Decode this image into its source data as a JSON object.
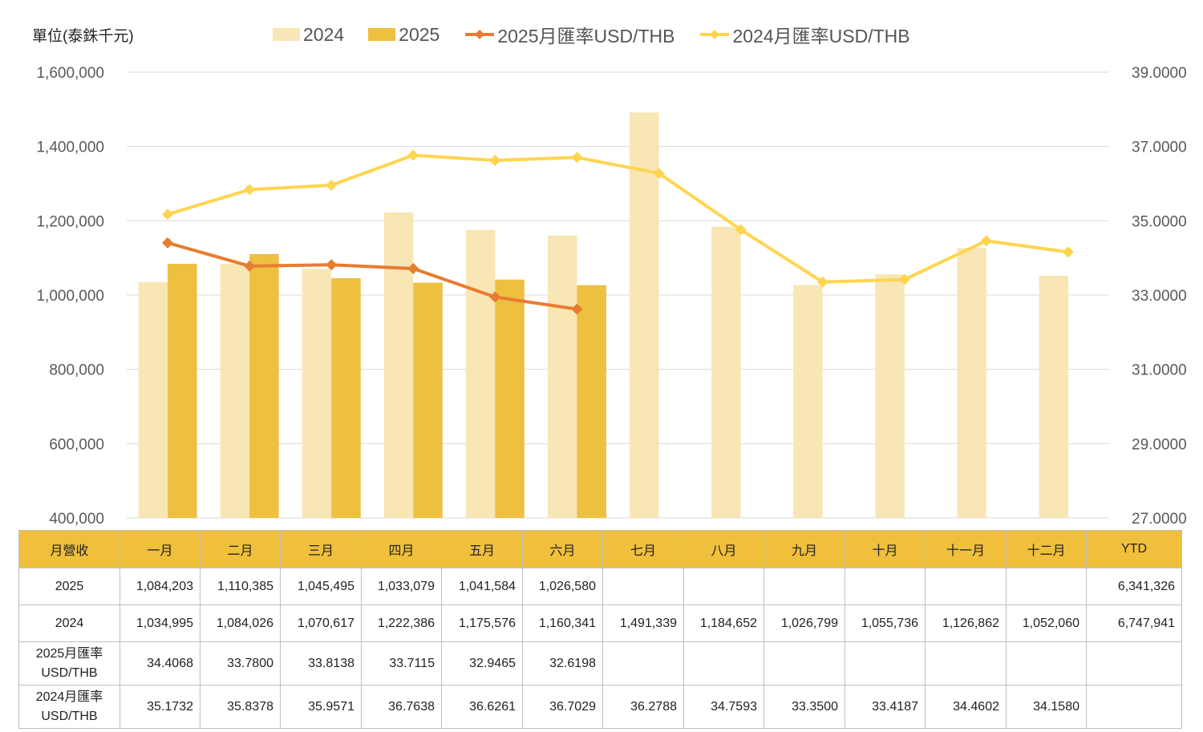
{
  "unit_label": "單位(泰銖千元)",
  "legend": [
    {
      "label": "2024",
      "kind": "bar",
      "color": "#f9e6b5"
    },
    {
      "label": "2025",
      "kind": "bar",
      "color": "#edc040"
    },
    {
      "label": "2025月匯率USD/THB",
      "kind": "line",
      "color": "#e87c30"
    },
    {
      "label": "2024月匯率USD/THB",
      "kind": "line",
      "color": "#ffd54f"
    }
  ],
  "chart_data": {
    "type": "bar",
    "categories": [
      "一月",
      "二月",
      "三月",
      "四月",
      "五月",
      "六月",
      "七月",
      "八月",
      "九月",
      "十月",
      "十一月",
      "十二月"
    ],
    "left_axis": {
      "min": 400000,
      "max": 1600000,
      "step": 200000,
      "tick_labels": [
        "400,000",
        "600,000",
        "800,000",
        "1,000,000",
        "1,200,000",
        "1,400,000",
        "1,600,000"
      ]
    },
    "right_axis": {
      "min": 27,
      "max": 39,
      "step": 2,
      "tick_labels": [
        "27.0000",
        "29.0000",
        "31.0000",
        "33.0000",
        "35.0000",
        "37.0000",
        "39.0000"
      ]
    },
    "grid": true,
    "legend_position": "top",
    "series": [
      {
        "name": "2024",
        "type": "bar",
        "axis": "left",
        "color": "#f9e6b5",
        "values": [
          1034995,
          1084026,
          1070617,
          1222386,
          1175576,
          1160341,
          1491339,
          1184652,
          1026799,
          1055736,
          1126862,
          1052060
        ]
      },
      {
        "name": "2025",
        "type": "bar",
        "axis": "left",
        "color": "#edc040",
        "values": [
          1084203,
          1110385,
          1045495,
          1033079,
          1041584,
          1026580,
          null,
          null,
          null,
          null,
          null,
          null
        ]
      },
      {
        "name": "2025月匯率USD/THB",
        "type": "line",
        "axis": "right",
        "color": "#e87c30",
        "values": [
          34.4068,
          33.78,
          33.8138,
          33.7115,
          32.9465,
          32.6198,
          null,
          null,
          null,
          null,
          null,
          null
        ]
      },
      {
        "name": "2024月匯率USD/THB",
        "type": "line",
        "axis": "right",
        "color": "#ffd54f",
        "values": [
          35.1732,
          35.8378,
          35.9571,
          36.7638,
          36.6261,
          36.7029,
          36.2788,
          34.7593,
          33.35,
          33.4187,
          34.4602,
          34.158
        ]
      }
    ]
  },
  "table": {
    "header": [
      "月營收",
      "一月",
      "二月",
      "三月",
      "四月",
      "五月",
      "六月",
      "七月",
      "八月",
      "九月",
      "十月",
      "十一月",
      "十二月",
      "YTD"
    ],
    "rows": [
      {
        "label": [
          "2025"
        ],
        "cells": [
          "1,084,203",
          "1,110,385",
          "1,045,495",
          "1,033,079",
          "1,041,584",
          "1,026,580",
          "",
          "",
          "",
          "",
          "",
          "",
          "6,341,326"
        ]
      },
      {
        "label": [
          "2024"
        ],
        "cells": [
          "1,034,995",
          "1,084,026",
          "1,070,617",
          "1,222,386",
          "1,175,576",
          "1,160,341",
          "1,491,339",
          "1,184,652",
          "1,026,799",
          "1,055,736",
          "1,126,862",
          "1,052,060",
          "6,747,941"
        ]
      },
      {
        "label": [
          "2025月匯率",
          "USD/THB"
        ],
        "cells": [
          "34.4068",
          "33.7800",
          "33.8138",
          "33.7115",
          "32.9465",
          "32.6198",
          "",
          "",
          "",
          "",
          "",
          "",
          ""
        ]
      },
      {
        "label": [
          "2024月匯率",
          "USD/THB"
        ],
        "cells": [
          "35.1732",
          "35.8378",
          "35.9571",
          "36.7638",
          "36.6261",
          "36.7029",
          "36.2788",
          "34.7593",
          "33.3500",
          "33.4187",
          "34.4602",
          "34.1580",
          ""
        ]
      }
    ]
  }
}
